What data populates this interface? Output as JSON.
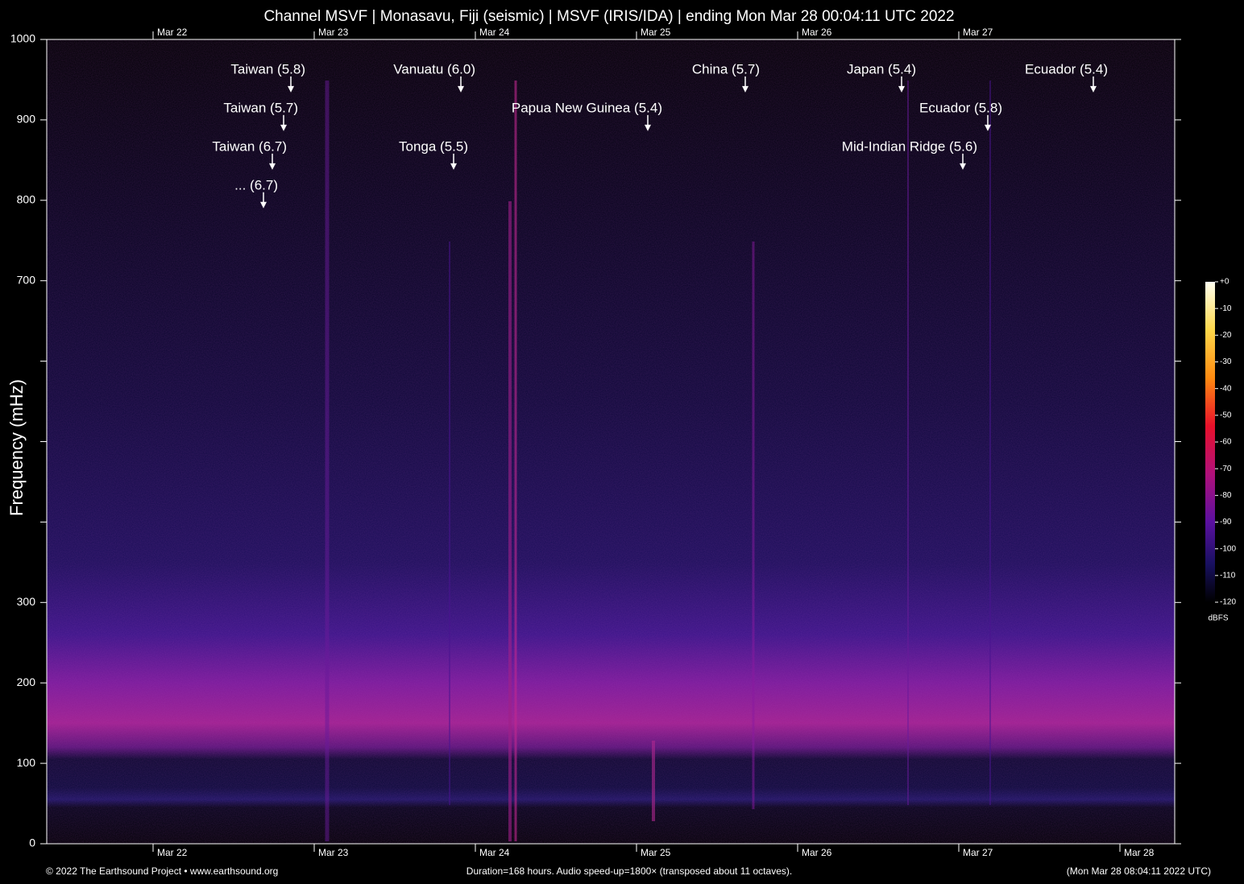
{
  "chart_data": {
    "type": "spectrogram",
    "title": "Channel MSVF | Monasavu, Fiji (seismic) | MSVF (IRIS/IDA) | ending Mon Mar 28 00:04:11 UTC 2022",
    "y_label": "Frequency (mHz)",
    "xlim": [
      0,
      168
    ],
    "xticks": [
      {
        "value": 15.84,
        "label": "Mar 22"
      },
      {
        "value": 39.84,
        "label": "Mar 23"
      },
      {
        "value": 63.84,
        "label": "Mar 24"
      },
      {
        "value": 87.84,
        "label": "Mar 25"
      },
      {
        "value": 111.84,
        "label": "Mar 26"
      },
      {
        "value": 135.84,
        "label": "Mar 27"
      },
      {
        "value": 159.84,
        "label": "Mar 28"
      }
    ],
    "ylim": [
      0,
      1000
    ],
    "yticks": [
      0,
      100,
      200,
      300,
      700,
      800,
      900,
      1000
    ],
    "yminor_ticks": [
      400,
      500,
      600
    ],
    "annotations": [
      {
        "text": "Taiwan (5.8)",
        "x": 36.36,
        "y": 934
      },
      {
        "text": "Taiwan (5.7)",
        "x": 35.28,
        "y": 886
      },
      {
        "text": "Taiwan (6.7)",
        "x": 33.6,
        "y": 838
      },
      {
        "text": "... (6.7)",
        "x": 32.28,
        "y": 790
      },
      {
        "text": "Vanuatu (6.0)",
        "x": 61.68,
        "y": 934
      },
      {
        "text": "Tonga (5.5)",
        "x": 60.6,
        "y": 838
      },
      {
        "text": "Papua New Guinea (5.4)",
        "x": 89.52,
        "y": 886
      },
      {
        "text": "China (5.7)",
        "x": 104.04,
        "y": 934
      },
      {
        "text": "Japan (5.4)",
        "x": 127.32,
        "y": 934
      },
      {
        "text": "Ecuador (5.8)",
        "x": 140.16,
        "y": 886
      },
      {
        "text": "Mid-Indian Ridge (5.6)",
        "x": 136.44,
        "y": 838
      },
      {
        "text": "Ecuador (5.4)",
        "x": 155.88,
        "y": 934
      }
    ],
    "colorbar": {
      "label": "dBFS",
      "clim": [
        -120,
        0
      ],
      "ticks": [
        {
          "value": 0,
          "label": "+0"
        },
        -10,
        -20,
        -30,
        -40,
        -50,
        -60,
        -70,
        -80,
        -90,
        -100,
        -110,
        -120
      ]
    },
    "footer": {
      "left": "© 2022 The Earthsound Project • www.earthsound.org",
      "center": "Duration=168 hours. Audio speed-up=1800× (transposed about 11 octaves).",
      "right": "(Mon Mar 28 08:04:11 2022 UTC)"
    }
  }
}
